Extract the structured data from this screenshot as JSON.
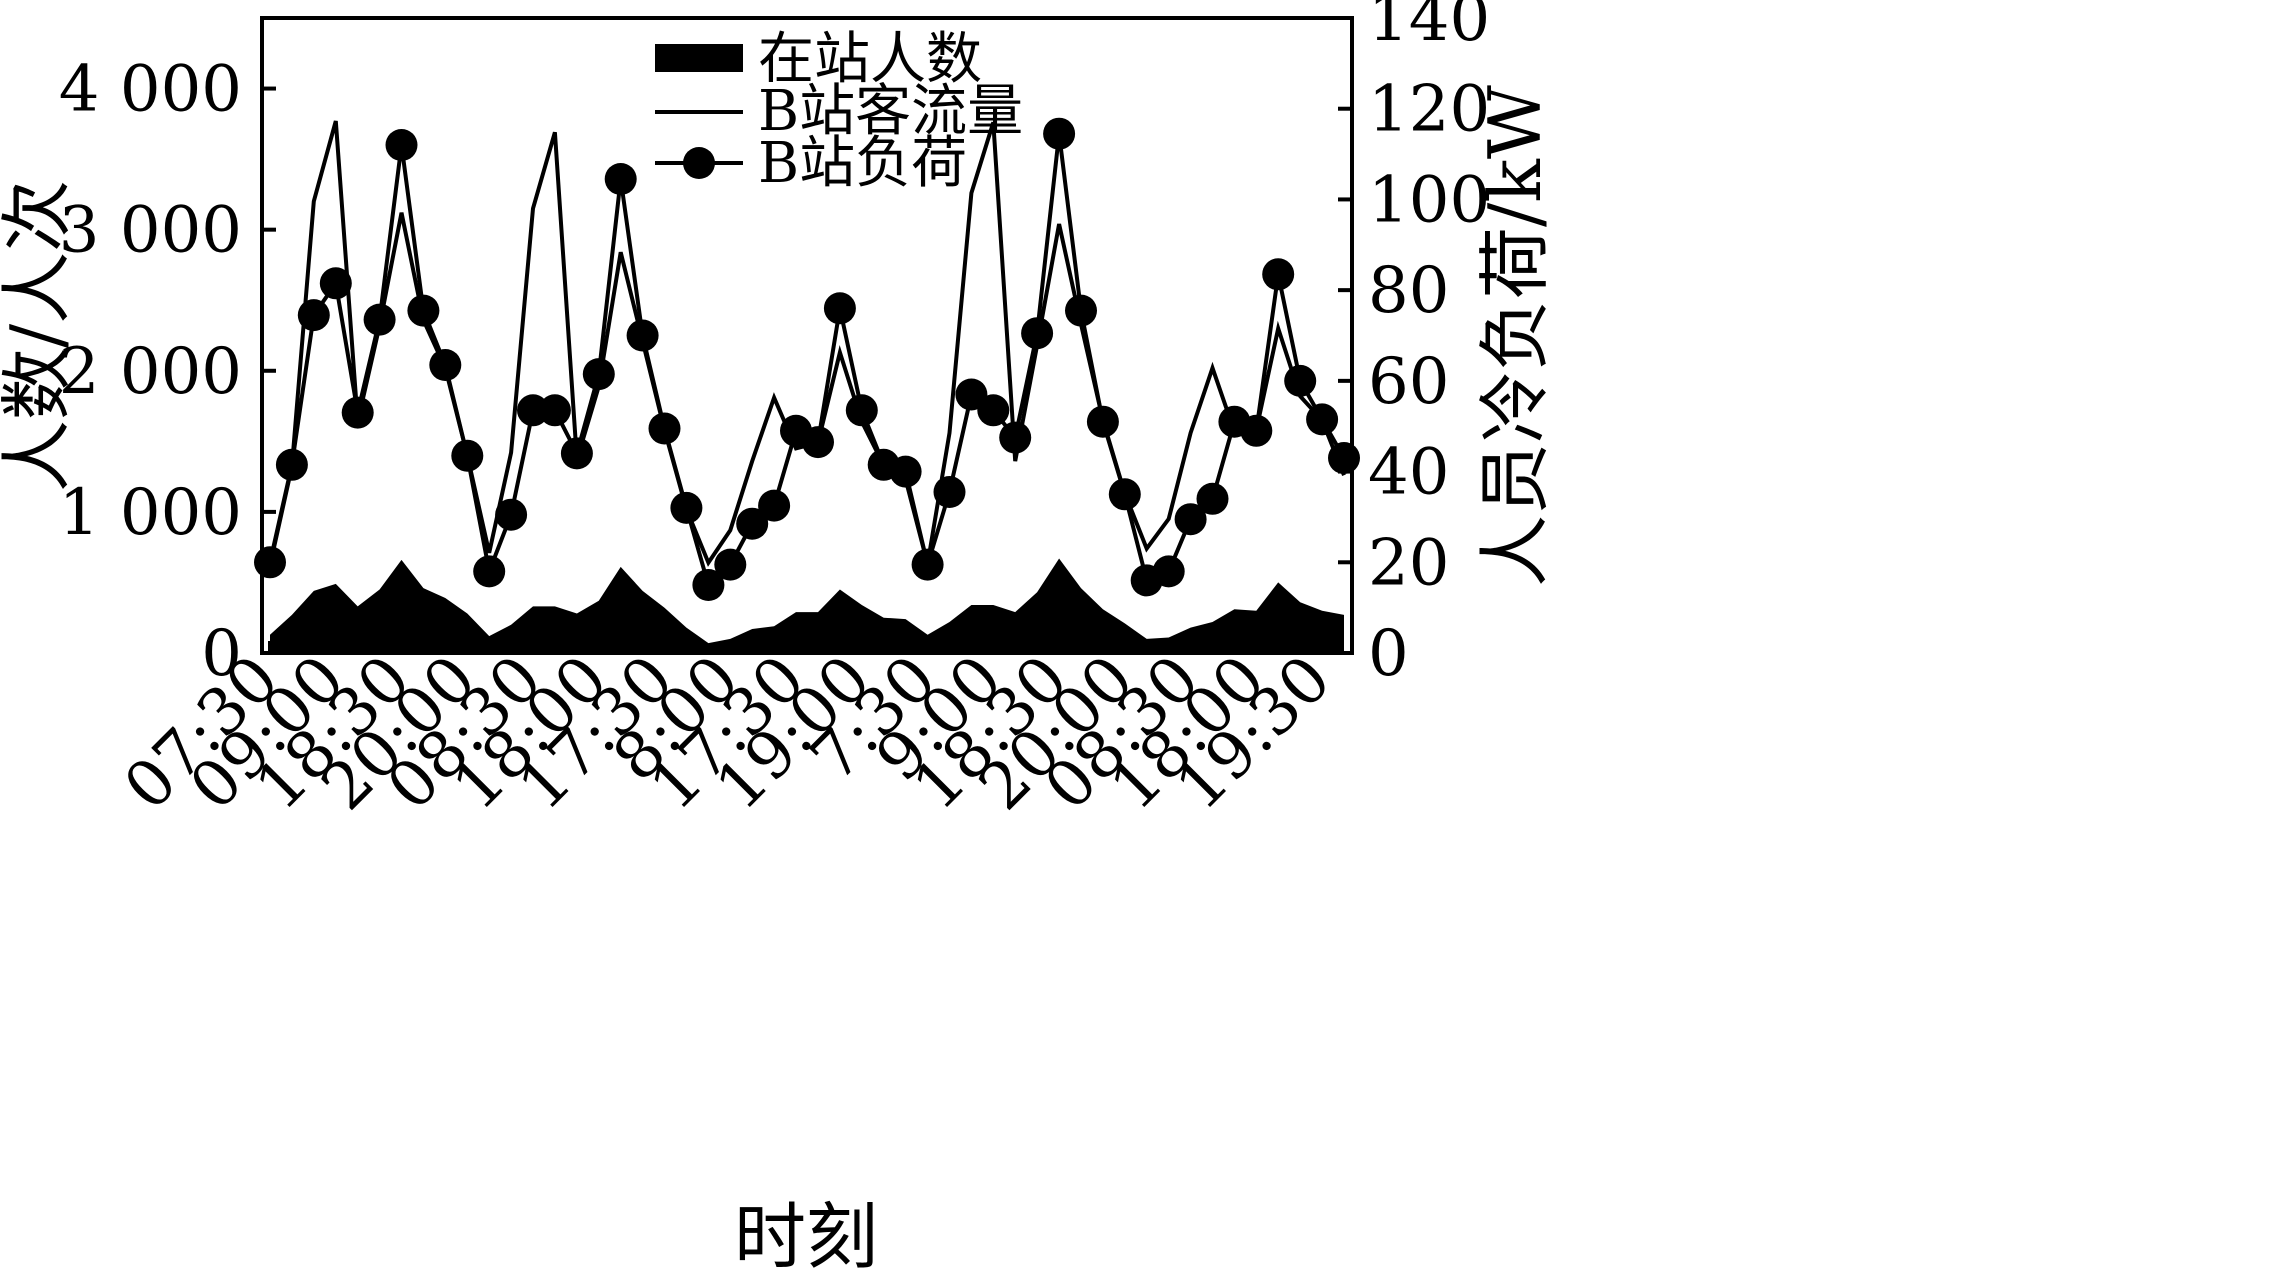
{
  "chart_data": {
    "type": "line",
    "xlabel": "时刻",
    "ylabel_left": "人数/人次",
    "ylabel_right": "人员冷负荷/kW",
    "ylim_left": [
      0,
      4500
    ],
    "ylim_right": [
      0,
      140
    ],
    "yticks_left": [
      0,
      1000,
      2000,
      3000,
      4000
    ],
    "yticks_left_labels": [
      "0",
      "1 000",
      "2 000",
      "3 000",
      "4 000"
    ],
    "yticks_right": [
      0,
      20,
      40,
      60,
      80,
      100,
      120,
      140
    ],
    "xtick_labels": [
      "07:30",
      "09:00",
      "18:30",
      "20:00",
      "08:30",
      "18:00",
      "17:30",
      "8:00",
      "17:30",
      "19:00",
      "7:30",
      "9:00",
      "18:30",
      "20:00",
      "08:30",
      "18:00",
      "19:30"
    ],
    "xtick_positions": [
      0,
      3,
      6,
      9,
      12,
      15,
      18,
      21,
      24,
      27,
      30,
      33,
      36,
      39,
      42,
      45,
      48
    ],
    "series": [
      {
        "name": "在站人数",
        "type": "area",
        "axis": "left",
        "color": "#000000",
        "values": [
          130,
          270,
          440,
          490,
          330,
          450,
          660,
          460,
          390,
          280,
          120,
          200,
          330,
          330,
          280,
          370,
          610,
          440,
          320,
          180,
          70,
          100,
          170,
          190,
          290,
          290,
          450,
          340,
          250,
          240,
          130,
          220,
          340,
          340,
          290,
          430,
          670,
          460,
          310,
          210,
          100,
          110,
          180,
          220,
          310,
          300,
          500,
          360,
          300,
          270
        ]
      },
      {
        "name": "B站客流量",
        "type": "line",
        "axis": "left",
        "color": "#000000",
        "values": [
          620,
          1320,
          3200,
          3770,
          1640,
          2320,
          3120,
          2360,
          2020,
          1400,
          710,
          1420,
          3150,
          3690,
          1370,
          1890,
          2840,
          2210,
          1580,
          1020,
          640,
          870,
          1360,
          1810,
          1450,
          1490,
          2130,
          1640,
          1330,
          1230,
          630,
          1560,
          3260,
          3760,
          1360,
          2180,
          3040,
          2330,
          1650,
          1130,
          740,
          950,
          1560,
          2020,
          1570,
          1580,
          2300,
          1820,
          1650,
          1260
        ]
      },
      {
        "name": "B站负荷",
        "type": "line-markers",
        "axis": "right",
        "color": "#000000",
        "values": [
          20,
          41.5,
          74.5,
          81.5,
          53,
          73.5,
          112,
          75.5,
          63.5,
          43.5,
          18,
          30.5,
          53.5,
          53.5,
          44,
          61.5,
          104.5,
          70,
          49.5,
          32,
          15,
          19.5,
          28.5,
          32.5,
          49,
          46.5,
          76,
          53.5,
          41.5,
          40,
          19.5,
          35.5,
          57,
          53.5,
          47.5,
          70.5,
          114.5,
          75.5,
          51,
          35,
          16,
          18,
          29.5,
          34,
          51,
          49,
          83.5,
          60,
          51.5,
          43
        ]
      }
    ],
    "legend_position": "top-center",
    "grid": false
  }
}
